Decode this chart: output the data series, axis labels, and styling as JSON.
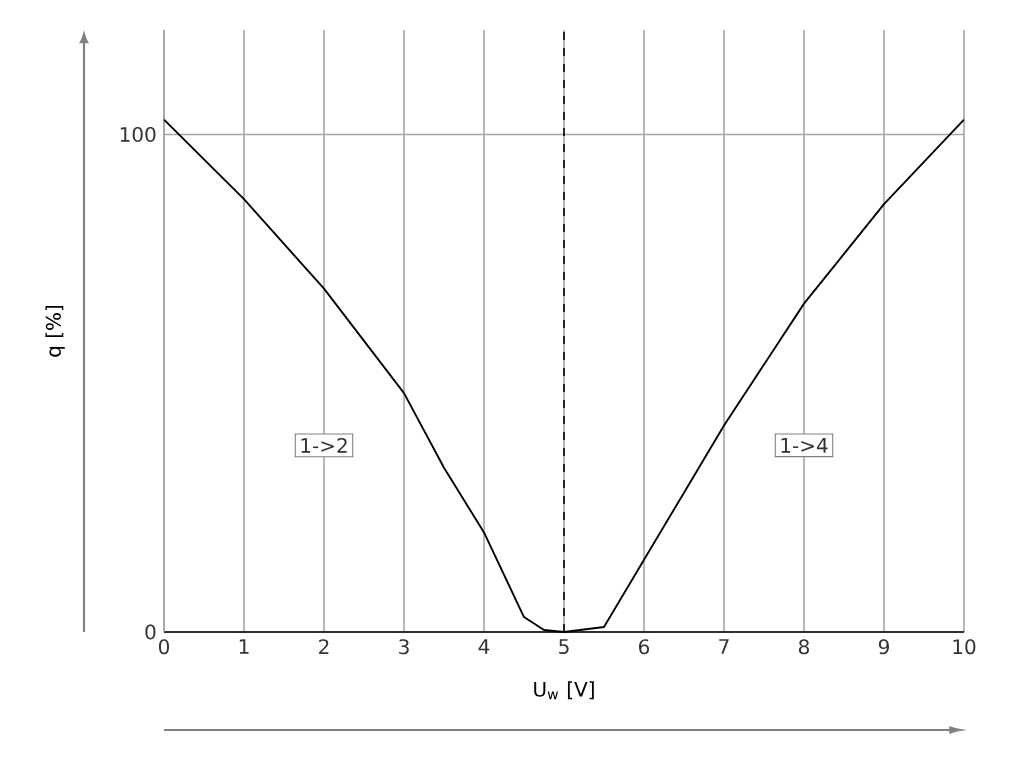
{
  "chart_data": {
    "type": "line",
    "xlabel": "U$_{w}$ [V]",
    "ylabel": "q [%]",
    "x": [
      0,
      1,
      1.5,
      2,
      3,
      3.5,
      4,
      4.5,
      4.75,
      5,
      5.5,
      6,
      6.5,
      7,
      8,
      8.5,
      9,
      10
    ],
    "series": [
      {
        "color": "#000000",
        "values": [
          103,
          87,
          78,
          69,
          48,
          33,
          20,
          3,
          0.4,
          0,
          1,
          14.5,
          28,
          41.5,
          66,
          76,
          86,
          103
        ]
      }
    ],
    "xlim": [
      0,
      10
    ],
    "ylim": [
      0,
      121
    ],
    "xticks": [
      0,
      1,
      2,
      3,
      4,
      5,
      6,
      7,
      8,
      9,
      10
    ],
    "yticks": [
      0,
      100
    ],
    "grid": true,
    "line_style": "solid",
    "marker": "none",
    "ref_lines": [
      {
        "axis": "x",
        "value": 5,
        "line_style": "dashed",
        "color": "#000000"
      }
    ],
    "annotations": [
      "1->2",
      "1->4"
    ]
  }
}
